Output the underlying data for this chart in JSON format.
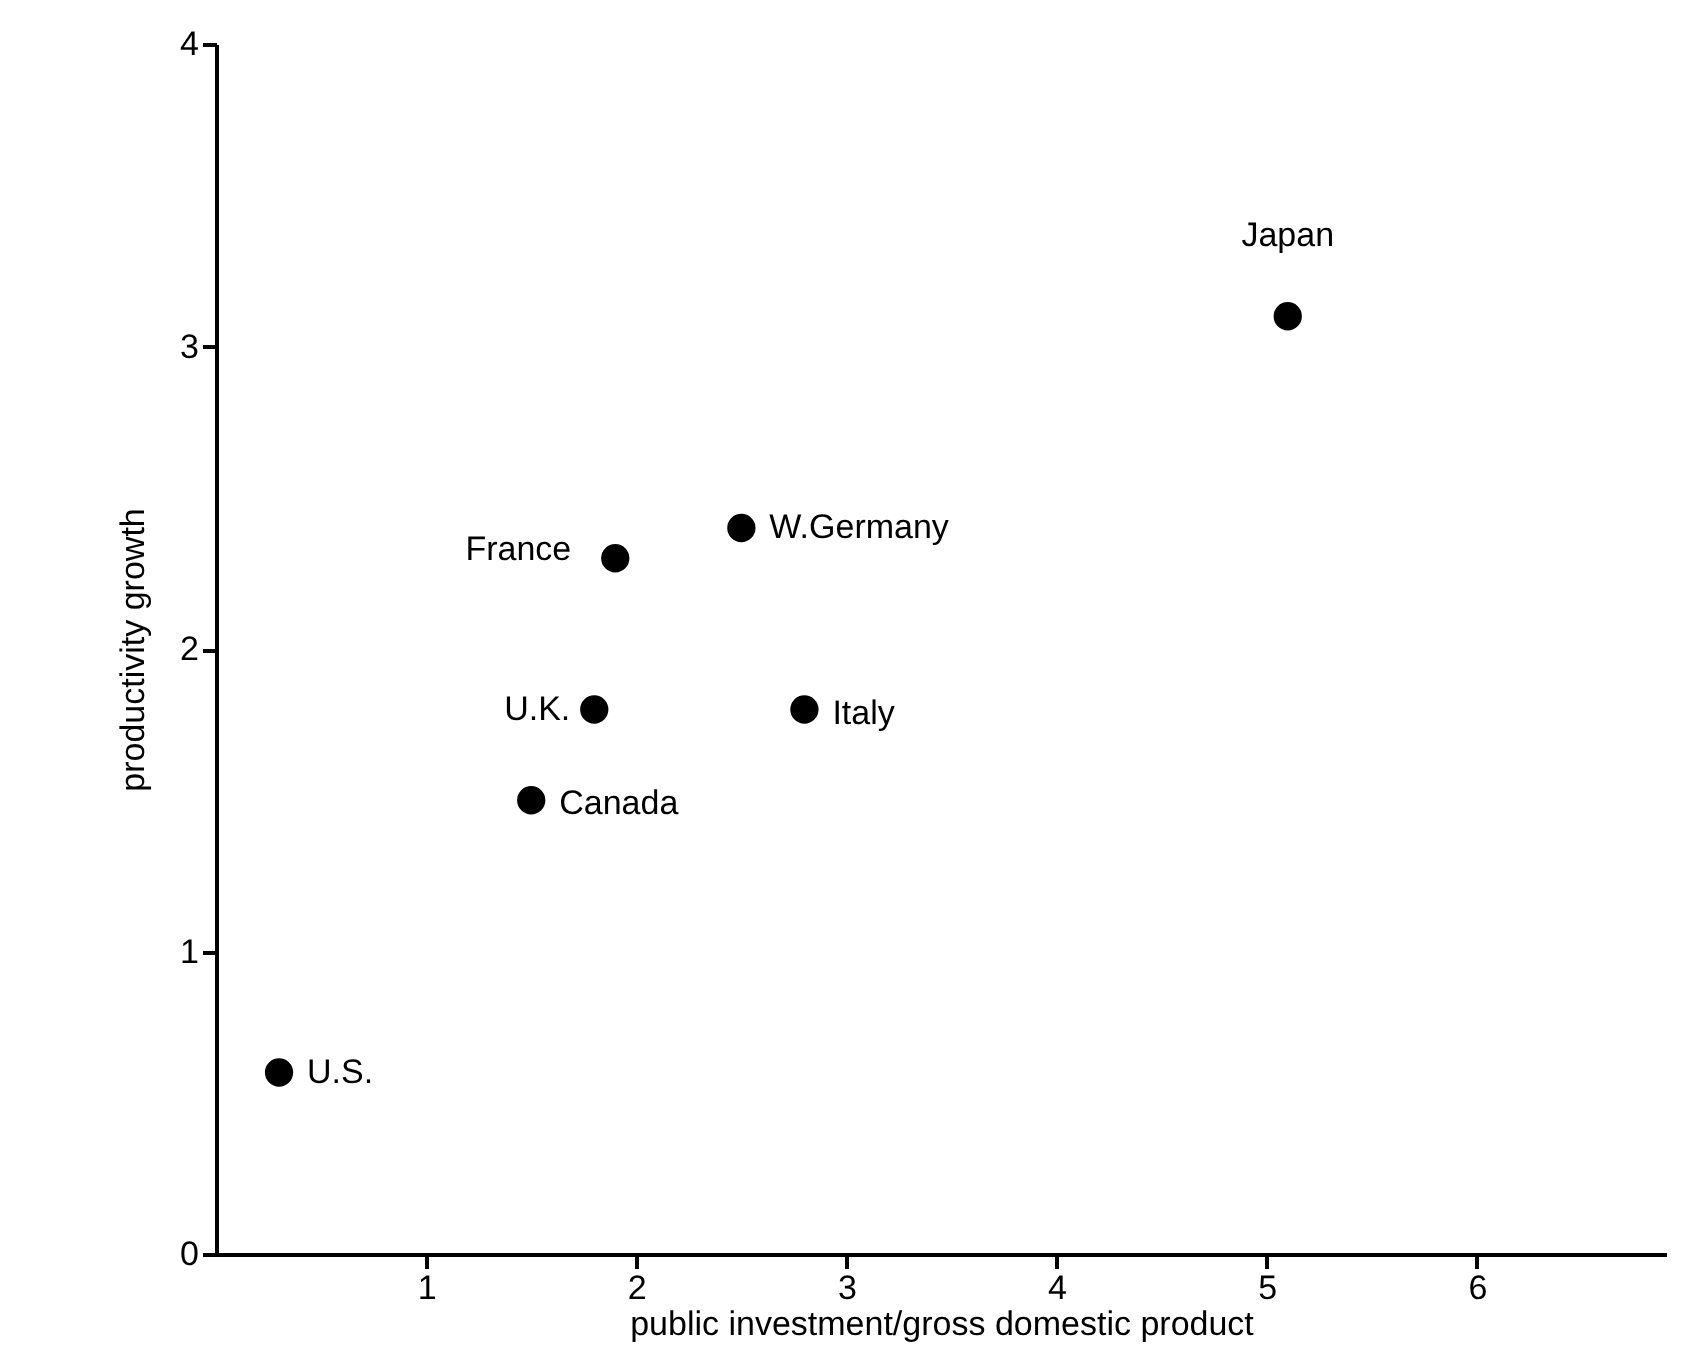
{
  "chart_data": {
    "type": "scatter",
    "xlabel": "public investment/gross domestic product",
    "ylabel": "productivity growth",
    "x": [
      0.3,
      1.5,
      1.8,
      2.8,
      1.9,
      2.5,
      5.1
    ],
    "series": [
      {
        "color": "#000000",
        "values": [
          0.6,
          1.5,
          1.8,
          1.8,
          2.3,
          2.4,
          3.1
        ]
      }
    ],
    "annotations": [
      {
        "text": "U.S.",
        "x": 0.3,
        "y": 0.6
      },
      {
        "text": "Canada",
        "x": 1.5,
        "y": 1.5
      },
      {
        "text": "U.K.",
        "x": 1.8,
        "y": 1.8
      },
      {
        "text": "Italy",
        "x": 2.8,
        "y": 1.8
      },
      {
        "text": "France",
        "x": 1.9,
        "y": 2.3
      },
      {
        "text": "W.Germany",
        "x": 2.5,
        "y": 2.4
      },
      {
        "text": "Japan",
        "x": 5.1,
        "y": 3.1
      }
    ],
    "xlim": [
      0,
      6.9
    ],
    "xticks": [
      1,
      2,
      3,
      4,
      5,
      6
    ],
    "ylim": [
      0,
      4
    ],
    "yticks": [
      0,
      1,
      2,
      3,
      4
    ],
    "marker": "circle",
    "grid": false
  }
}
